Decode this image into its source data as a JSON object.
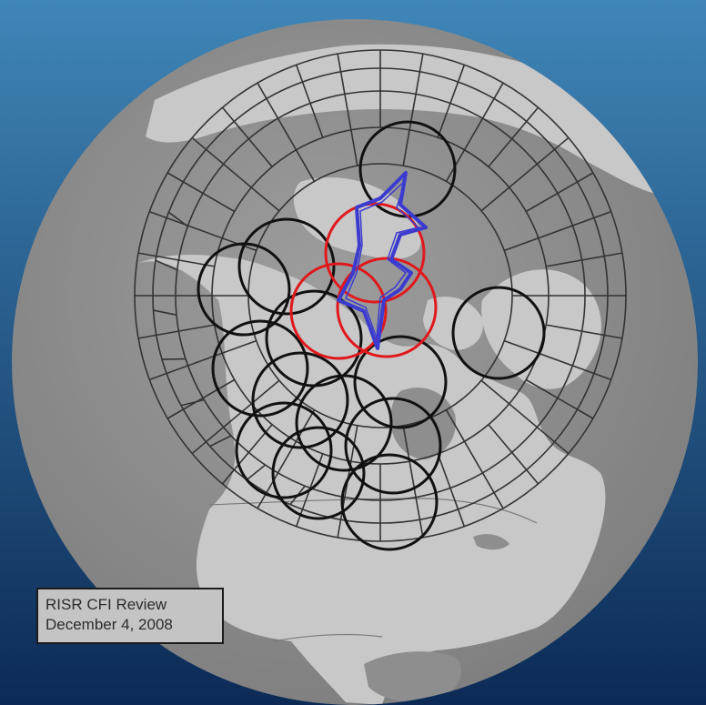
{
  "caption": {
    "title": "RISR CFI Review",
    "date": "December 4, 2008"
  },
  "colors": {
    "space_top": "#3f86b8",
    "space_bottom": "#0c2a55",
    "ocean": "#8e8e8e",
    "land": "#c8c8c8",
    "grid": "#333333",
    "existing_radar_fov": "#111111",
    "risr_fov": "#e0181c",
    "risr_overlap_footprint": "#3b3bd0"
  },
  "map_layers": {
    "globe": "globe-orthographic-north-america",
    "grid": "polar-geomagnetic-grid",
    "radar_fields_of_view": "circles",
    "footprint": "star-shaped-overlap"
  }
}
